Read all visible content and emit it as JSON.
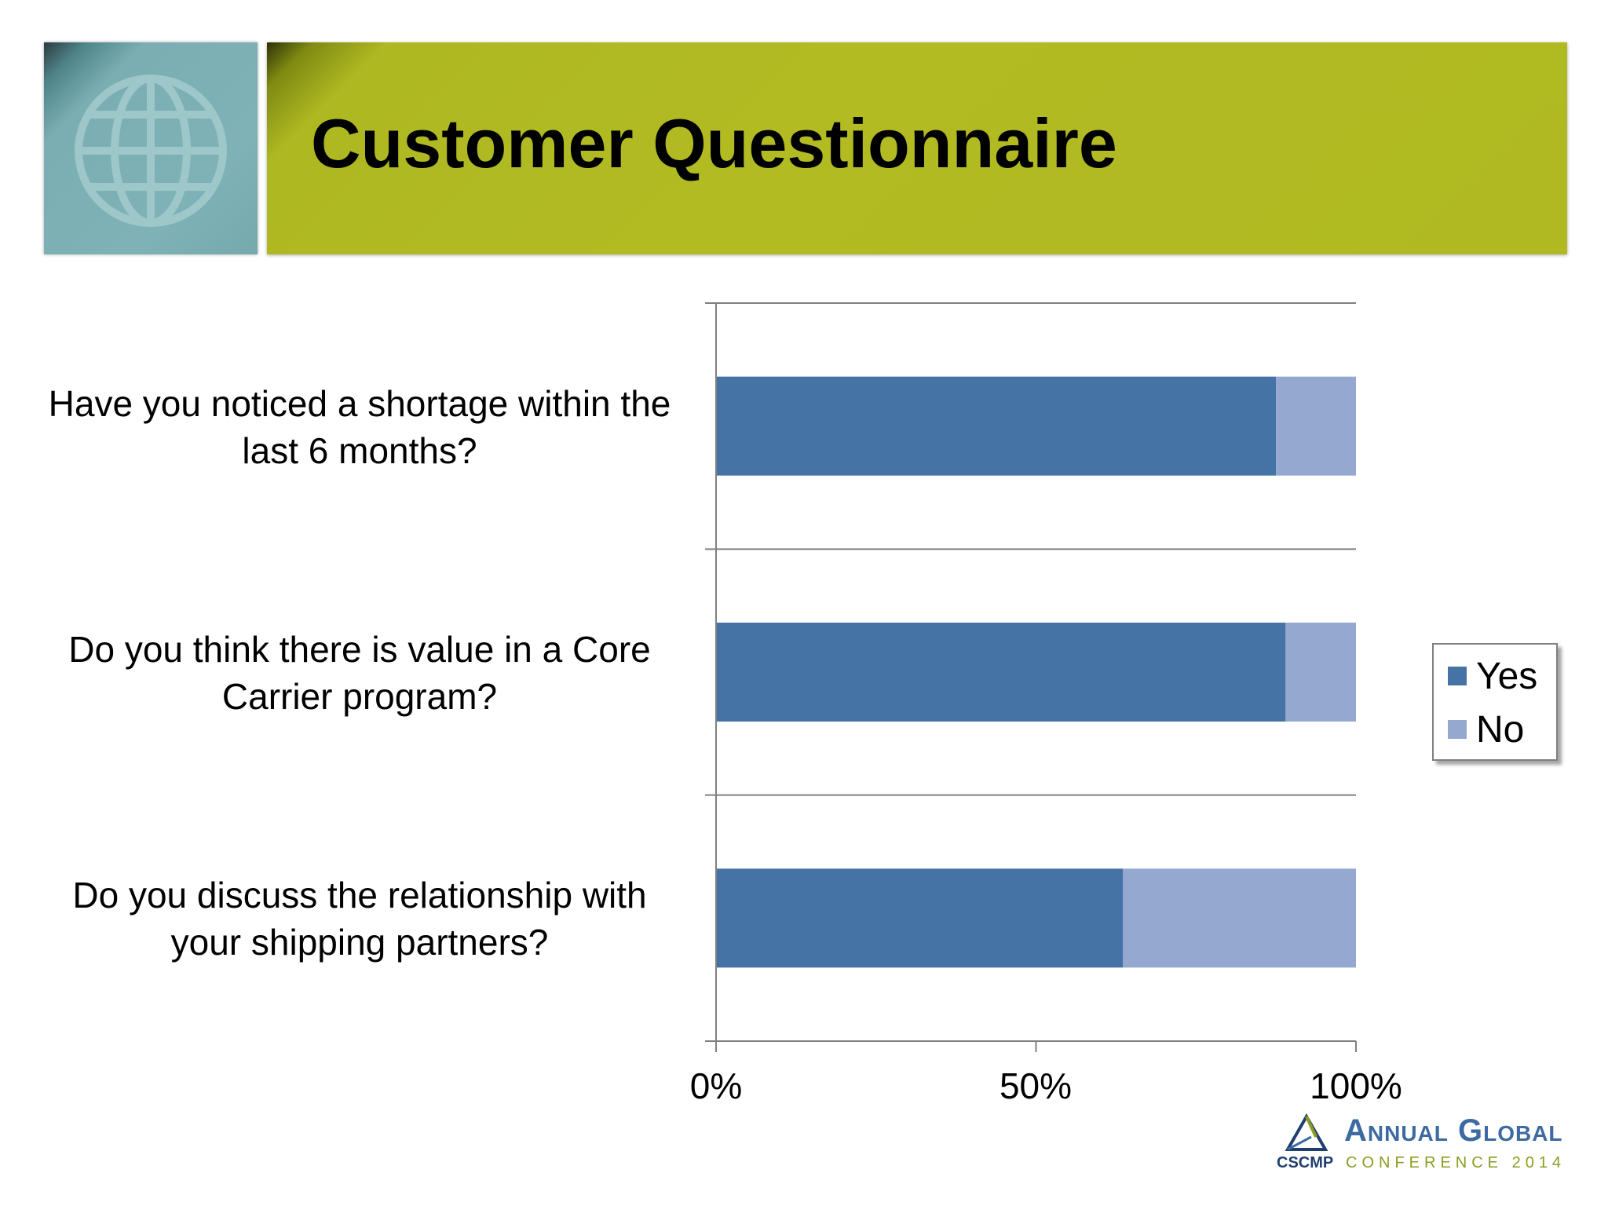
{
  "slide": {
    "title": "Customer Questionnaire"
  },
  "colors": {
    "yes": "#4673a6",
    "no": "#94a8d0",
    "title_band": "#b2bb22",
    "logo_tile": "#7fb2b6"
  },
  "icons": {
    "header": "globe-icon",
    "footer": "triangle-logo-icon"
  },
  "chart_data": {
    "type": "bar",
    "orientation": "horizontal",
    "stacked": "percent",
    "categories": [
      "Have you noticed a shortage within the last 6 months?",
      "Do you think there is value in a Core Carrier program?",
      "Do you discuss the relationship with your shipping partners?"
    ],
    "series": [
      {
        "name": "Yes",
        "values": [
          87.5,
          89,
          63.6
        ]
      },
      {
        "name": "No",
        "values": [
          12.5,
          11,
          36.4
        ]
      }
    ],
    "xticks": [
      "0%",
      "50%",
      "100%"
    ],
    "xlim": [
      0,
      100
    ],
    "grid": "horizontal category separators",
    "legend_position": "right"
  },
  "footer": {
    "conference_name": "Annual Global",
    "organization": "CSCMP",
    "subtitle": "CONFERENCE 2014"
  }
}
